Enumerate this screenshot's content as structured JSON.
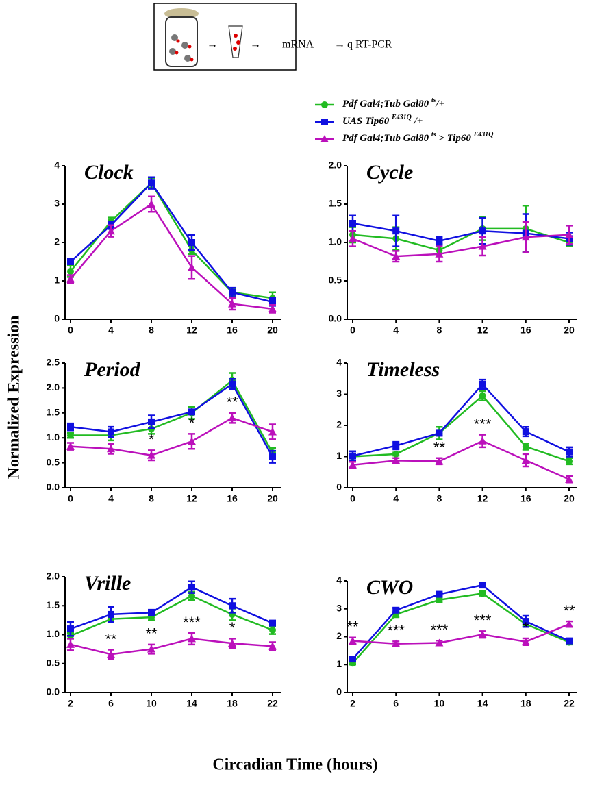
{
  "diagram": {
    "labels": [
      "mRNA",
      "q RT-PCR"
    ]
  },
  "legend": {
    "entries": [
      {
        "name": [
          "Pdf Gal4;Tub Gal80 ",
          "ts",
          "/+"
        ]
      },
      {
        "name": [
          "UAS Tip60 ",
          "E431Q",
          " /+"
        ]
      },
      {
        "name": [
          "Pdf Gal4;Tub Gal80 ",
          "ts",
          " > Tip60 ",
          "E431Q"
        ]
      }
    ]
  },
  "ylabel": "Normalized Expression",
  "xlabel": "Circadian Time (hours)",
  "chart_data": [
    {
      "type": "line",
      "title": "Clock",
      "x": [
        0,
        4,
        8,
        12,
        16,
        20
      ],
      "xticks": [
        0,
        4,
        8,
        12,
        16,
        20
      ],
      "ylim": [
        0,
        4
      ],
      "yticks": [
        0,
        1,
        2,
        3,
        4
      ],
      "series": [
        {
          "color": "#22bb22",
          "marker": "circle",
          "values": [
            1.25,
            2.55,
            3.55,
            1.8,
            0.7,
            0.55
          ],
          "errors": [
            0.15,
            0.1,
            0.12,
            0.1,
            0.1,
            0.15
          ]
        },
        {
          "color": "#1010e0",
          "marker": "square",
          "values": [
            1.5,
            2.45,
            3.55,
            2.0,
            0.7,
            0.45
          ],
          "errors": [
            0.05,
            0.1,
            0.15,
            0.2,
            0.12,
            0.1
          ]
        },
        {
          "color": "#bb10bb",
          "marker": "triangle",
          "values": [
            1.05,
            2.3,
            3.0,
            1.35,
            0.4,
            0.27
          ],
          "errors": [
            0.1,
            0.15,
            0.2,
            0.3,
            0.15,
            0.1
          ]
        }
      ],
      "annotations": []
    },
    {
      "type": "line",
      "title": "Cycle",
      "x": [
        0,
        4,
        8,
        12,
        16,
        20
      ],
      "xticks": [
        0,
        4,
        8,
        12,
        16,
        20
      ],
      "ylim": [
        0,
        2
      ],
      "yticks": [
        {
          "value": 0,
          "label": "0.0"
        },
        0.5,
        {
          "value": 1,
          "label": "1.0"
        },
        1.5,
        {
          "value": 2,
          "label": "2.0"
        }
      ],
      "series": [
        {
          "color": "#22bb22",
          "marker": "circle",
          "values": [
            1.1,
            1.05,
            0.9,
            1.18,
            1.18,
            1.0
          ],
          "errors": [
            0.1,
            0.15,
            0.08,
            0.15,
            0.3,
            0.05
          ]
        },
        {
          "color": "#1010e0",
          "marker": "square",
          "values": [
            1.25,
            1.15,
            1.02,
            1.15,
            1.12,
            1.05
          ],
          "errors": [
            0.1,
            0.2,
            0.05,
            0.17,
            0.25,
            0.08
          ]
        },
        {
          "color": "#bb10bb",
          "marker": "triangle",
          "values": [
            1.05,
            0.82,
            0.85,
            0.95,
            1.07,
            1.1
          ],
          "errors": [
            0.1,
            0.07,
            0.1,
            0.12,
            0.2,
            0.12
          ]
        }
      ],
      "annotations": []
    },
    {
      "type": "line",
      "title": "Period",
      "x": [
        0,
        4,
        8,
        12,
        16,
        20
      ],
      "xticks": [
        0,
        4,
        8,
        12,
        16,
        20
      ],
      "ylim": [
        0,
        2.5
      ],
      "yticks": [
        {
          "value": 0,
          "label": "0.0"
        },
        0.5,
        {
          "value": 1,
          "label": "1.0"
        },
        1.5,
        {
          "value": 2,
          "label": "2.0"
        },
        2.5
      ],
      "series": [
        {
          "color": "#22bb22",
          "marker": "circle",
          "values": [
            1.05,
            1.05,
            1.18,
            1.5,
            2.15,
            0.7
          ],
          "errors": [
            0.05,
            0.1,
            0.1,
            0.12,
            0.15,
            0.1
          ]
        },
        {
          "color": "#1010e0",
          "marker": "square",
          "values": [
            1.22,
            1.12,
            1.32,
            1.52,
            2.08,
            0.62
          ],
          "errors": [
            0.07,
            0.1,
            0.13,
            0.05,
            0.1,
            0.12
          ]
        },
        {
          "color": "#bb10bb",
          "marker": "triangle",
          "values": [
            0.83,
            0.78,
            0.65,
            0.93,
            1.4,
            1.12
          ],
          "errors": [
            0.07,
            0.1,
            0.1,
            0.15,
            0.1,
            0.15
          ]
        }
      ],
      "annotations": [
        {
          "x": 8,
          "text": "*"
        },
        {
          "x": 12,
          "text": "*"
        },
        {
          "x": 16,
          "text": "**"
        }
      ]
    },
    {
      "type": "line",
      "title": "Timeless",
      "x": [
        0,
        4,
        8,
        12,
        16,
        20
      ],
      "xticks": [
        0,
        4,
        8,
        12,
        16,
        20
      ],
      "ylim": [
        0,
        4
      ],
      "yticks": [
        0,
        1,
        2,
        3,
        4
      ],
      "series": [
        {
          "color": "#22bb22",
          "marker": "circle",
          "values": [
            1.0,
            1.08,
            1.75,
            2.95,
            1.32,
            0.85
          ],
          "errors": [
            0.05,
            0.05,
            0.2,
            0.15,
            0.1,
            0.1
          ]
        },
        {
          "color": "#1010e0",
          "marker": "square",
          "values": [
            1.02,
            1.35,
            1.75,
            3.32,
            1.8,
            1.15
          ],
          "errors": [
            0.15,
            0.12,
            0.08,
            0.15,
            0.15,
            0.15
          ]
        },
        {
          "color": "#bb10bb",
          "marker": "triangle",
          "values": [
            0.73,
            0.87,
            0.85,
            1.5,
            0.88,
            0.27
          ],
          "errors": [
            0.1,
            0.08,
            0.1,
            0.2,
            0.2,
            0.1
          ]
        }
      ],
      "annotations": [
        {
          "x": 8,
          "text": "**"
        },
        {
          "x": 12,
          "text": "***"
        }
      ]
    },
    {
      "type": "line",
      "title": "Vrille",
      "x": [
        2,
        6,
        10,
        14,
        18,
        22
      ],
      "xticks": [
        2,
        6,
        10,
        14,
        18,
        22
      ],
      "ylim": [
        0,
        2
      ],
      "yticks": [
        {
          "value": 0,
          "label": "0.0"
        },
        0.5,
        {
          "value": 1,
          "label": "1.0"
        },
        1.5,
        {
          "value": 2,
          "label": "2.0"
        }
      ],
      "series": [
        {
          "color": "#22bb22",
          "marker": "circle",
          "values": [
            0.98,
            1.27,
            1.3,
            1.67,
            1.35,
            1.08
          ],
          "errors": [
            0.05,
            0.05,
            0.05,
            0.07,
            0.1,
            0.07
          ]
        },
        {
          "color": "#1010e0",
          "marker": "square",
          "values": [
            1.1,
            1.35,
            1.38,
            1.82,
            1.5,
            1.2
          ],
          "errors": [
            0.12,
            0.13,
            0.05,
            0.1,
            0.12,
            0.03
          ]
        },
        {
          "color": "#bb10bb",
          "marker": "triangle",
          "values": [
            0.83,
            0.66,
            0.75,
            0.93,
            0.85,
            0.8
          ],
          "errors": [
            0.1,
            0.08,
            0.08,
            0.1,
            0.08,
            0.07
          ]
        }
      ],
      "annotations": [
        {
          "x": 6,
          "text": "**"
        },
        {
          "x": 10,
          "text": "**"
        },
        {
          "x": 14,
          "text": "***"
        },
        {
          "x": 18,
          "text": "*"
        }
      ]
    },
    {
      "type": "line",
      "title": "CWO",
      "x": [
        2,
        6,
        10,
        14,
        18,
        22
      ],
      "xticks": [
        2,
        6,
        10,
        14,
        18,
        22
      ],
      "ylim": [
        0,
        4
      ],
      "yticks": [
        0,
        1,
        2,
        3,
        4
      ],
      "series": [
        {
          "color": "#22bb22",
          "marker": "circle",
          "values": [
            1.05,
            2.8,
            3.32,
            3.55,
            2.45,
            1.8
          ],
          "errors": [
            0.05,
            0.1,
            0.08,
            0.08,
            0.08,
            0.08
          ]
        },
        {
          "color": "#1010e0",
          "marker": "square",
          "values": [
            1.2,
            2.95,
            3.52,
            3.85,
            2.55,
            1.85
          ],
          "errors": [
            0.05,
            0.08,
            0.05,
            0.08,
            0.2,
            0.05
          ]
        },
        {
          "color": "#bb10bb",
          "marker": "triangle",
          "values": [
            1.85,
            1.75,
            1.78,
            2.08,
            1.82,
            2.45
          ],
          "errors": [
            0.12,
            0.08,
            0.08,
            0.12,
            0.12,
            0.1
          ]
        }
      ],
      "annotations": [
        {
          "x": 2,
          "text": "**"
        },
        {
          "x": 6,
          "text": "***"
        },
        {
          "x": 10,
          "text": "***"
        },
        {
          "x": 14,
          "text": "***"
        },
        {
          "x": 18,
          "text": "*"
        },
        {
          "x": 22,
          "text": "**"
        }
      ]
    }
  ]
}
